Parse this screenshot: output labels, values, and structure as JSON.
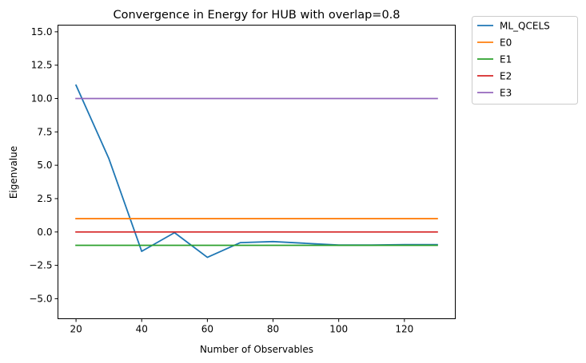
{
  "chart_data": {
    "type": "line",
    "title": "Convergence in Energy for HUB with overlap=0.8",
    "xlabel": "Number of Observables",
    "ylabel": "Eigenvalue",
    "xlim": [
      14.5,
      135.5
    ],
    "ylim": [
      -6.5,
      15.5
    ],
    "xticks": [
      20,
      40,
      60,
      80,
      100,
      120
    ],
    "xtick_labels": [
      "20",
      "40",
      "60",
      "80",
      "100",
      "120"
    ],
    "yticks": [
      -5.0,
      -2.5,
      0.0,
      2.5,
      5.0,
      7.5,
      10.0,
      12.5,
      15.0
    ],
    "ytick_labels": [
      "−5.0",
      "−2.5",
      "0.0",
      "2.5",
      "5.0",
      "7.5",
      "10.0",
      "12.5",
      "15.0"
    ],
    "legend_position": "outside-upper-right",
    "series": [
      {
        "name": "ML_QCELS",
        "color": "#1f77b4",
        "x": [
          20,
          30,
          40,
          50,
          60,
          70,
          80,
          90,
          100,
          110,
          120,
          130
        ],
        "y": [
          11.0,
          5.5,
          -1.45,
          -0.05,
          -1.9,
          -0.8,
          -0.72,
          -0.85,
          -0.98,
          -0.98,
          -0.95,
          -0.95
        ]
      },
      {
        "name": "E0",
        "color": "#ff7f0e",
        "x": [
          20,
          130
        ],
        "y": [
          1.0,
          1.0
        ]
      },
      {
        "name": "E1",
        "color": "#2ca02c",
        "x": [
          20,
          130
        ],
        "y": [
          -1.0,
          -1.0
        ]
      },
      {
        "name": "E2",
        "color": "#d62728",
        "x": [
          20,
          130
        ],
        "y": [
          0.0,
          0.0
        ]
      },
      {
        "name": "E3",
        "color": "#9467bd",
        "x": [
          20,
          130
        ],
        "y": [
          10.0,
          10.0
        ]
      }
    ]
  }
}
